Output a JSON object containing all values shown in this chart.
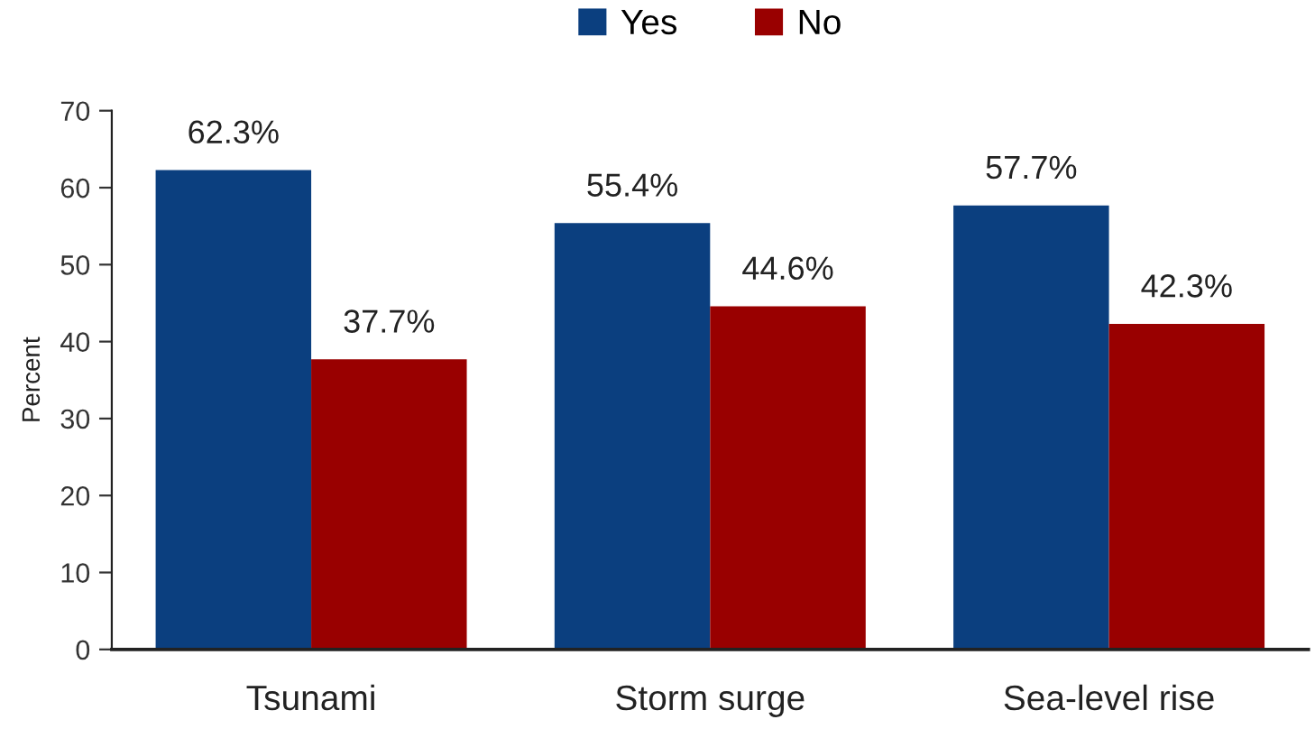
{
  "chart_data": {
    "type": "bar",
    "ylabel": "Percent",
    "categories": [
      "Tsunami",
      "Storm surge",
      "Sea-level rise"
    ],
    "series": [
      {
        "name": "Yes",
        "color": "#0b3f7f",
        "values": [
          62.3,
          55.4,
          57.7
        ],
        "value_labels": [
          "62.3%",
          "55.4%",
          "57.7%"
        ]
      },
      {
        "name": "No",
        "color": "#990000",
        "values": [
          37.7,
          44.6,
          42.3
        ],
        "value_labels": [
          "37.7%",
          "44.6%",
          "42.3%"
        ]
      }
    ],
    "ylim": [
      0,
      70
    ],
    "yticks": [
      0,
      10,
      20,
      30,
      40,
      50,
      60,
      70
    ],
    "grid": false,
    "legend": "top"
  }
}
